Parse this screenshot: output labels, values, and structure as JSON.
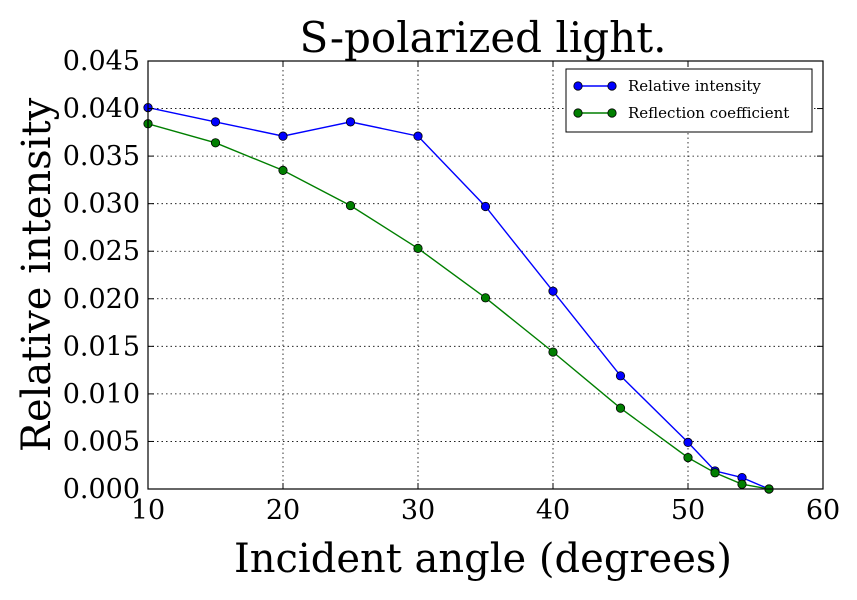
{
  "chart_data": {
    "type": "line",
    "title": "S-polarized light.",
    "xlabel": "Incident angle (degrees)",
    "ylabel": "Relative intensity",
    "xlim": [
      10,
      60
    ],
    "ylim": [
      0.0,
      0.045
    ],
    "xticks": [
      "10",
      "20",
      "30",
      "40",
      "50",
      "60"
    ],
    "yticks": [
      "0.000",
      "0.005",
      "0.010",
      "0.015",
      "0.020",
      "0.025",
      "0.030",
      "0.035",
      "0.040",
      "0.045"
    ],
    "grid": true,
    "legend_position": "top-right",
    "series": [
      {
        "name": "Relative intensity",
        "color": "#0000ff",
        "marker": "circle",
        "x": [
          10,
          15,
          20,
          25,
          30,
          35,
          40,
          45,
          50,
          52,
          54,
          56
        ],
        "y": [
          0.0401,
          0.0386,
          0.0371,
          0.0386,
          0.0371,
          0.0297,
          0.0208,
          0.0119,
          0.0049,
          0.0019,
          0.0012,
          0.0
        ]
      },
      {
        "name": "Reflection coefficient",
        "color": "#007f00",
        "marker": "circle",
        "x": [
          10,
          15,
          20,
          25,
          30,
          35,
          40,
          45,
          50,
          52,
          54,
          56
        ],
        "y": [
          0.0384,
          0.0364,
          0.0335,
          0.0298,
          0.0253,
          0.0201,
          0.0144,
          0.0085,
          0.0033,
          0.0017,
          0.0005,
          0.0
        ]
      }
    ]
  }
}
